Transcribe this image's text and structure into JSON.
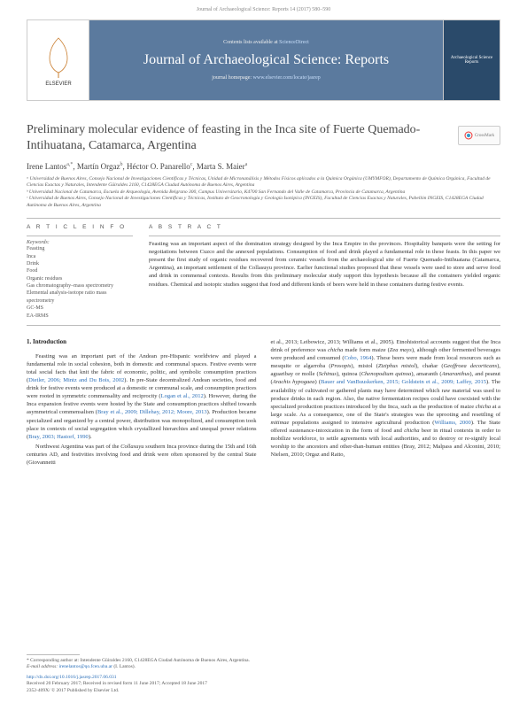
{
  "citation_header": "Journal of Archaeological Science: Reports 14 (2017) 580–590",
  "header": {
    "contents_prefix": "Contents lists available at ",
    "contents_link": "ScienceDirect",
    "journal_name": "Journal of Archaeological Science: Reports",
    "homepage_prefix": "journal homepage: ",
    "homepage_link": "www.elsevier.com/locate/jasrep",
    "publisher_logo_label": "ELSEVIER",
    "cover_label": "Archaeological Science Reports"
  },
  "article": {
    "title": "Preliminary molecular evidence of feasting in the Inca site of Fuerte Quemado-Intihuatana, Catamarca, Argentina",
    "crossmark": "CrossMark",
    "authors_html": "Irene Lantos<sup>a,*</sup>, Martín Orgaz<sup>b</sup>, Héctor O. Panarello<sup>c</sup>, Marta S. Maier<sup>a</sup>",
    "affiliations": [
      "ᵃ Universidad de Buenos Aires, Consejo Nacional de Investigaciones Científicas y Técnicas, Unidad de Micronanálisis y Métodos Físicos aplicados a la Química Orgánica (UMYMFOR), Departamento de Química Orgánica, Facultad de Ciencias Exactas y Naturales, Intendente Güiraldes 2160, C1428EGA Ciudad Autónoma de Buenos Aires, Argentina",
      "ᵇ Universidad Nacional de Catamarca, Escuela de Arqueología, Avenida Belgrano 300, Campus Universitario, K4700 San Fernando del Valle de Catamarca, Provincia de Catamarca, Argentina",
      "ᶜ Universidad de Buenos Aires, Consejo Nacional de Investigaciones Científicas y Técnicas, Instituto de Geocronología y Geología Isotópica (INGEIS), Facultad de Ciencias Exactas y Naturales, Pabellón INGEIS, C1428EGA Ciudad Autónoma de Buenos Aires, Argentina"
    ]
  },
  "info": {
    "heading": "A R T I C L E  I N F O",
    "keywords_label": "Keywords:",
    "keywords": [
      "Feasting",
      "Inca",
      "Drink",
      "Food",
      "Organic residues",
      "Gas chromatography–mass spectrometry",
      "Elemental analysis-isotope ratio mass spectrometry",
      "GC-MS",
      "EA-IRMS"
    ]
  },
  "abstract": {
    "heading": "A B S T R A C T",
    "text": "Feasting was an important aspect of the domination strategy designed by the Inca Empire in the provinces. Hospitality banquets were the setting for negotiations between Cuzco and the annexed populations. Consumption of food and drink played a fundamental role in these feasts. In this paper we present the first study of organic residues recovered from ceramic vessels from the archaeological site of Fuerte Quemado-Intihuatana (Catamarca, Argentina), an important settlement of the Collasuyu province. Earlier functional studies proposed that these vessels were used to store and serve food and drink in commensal contexts. Results from this preliminary molecular study support this hypothesis because all the containers yielded organic residues. Chemical and isotopic studies suggest that food and different kinds of beers were held in these containers during festive events."
  },
  "body": {
    "section1_heading": "1. Introduction",
    "para1": "Feasting was an important part of the Andean pre-Hispanic worldview and played a fundamental role in social cohesion, both in domestic and communal spaces. Festive events were total social facts that knit the fabric of economic, politic, and symbolic consumption practices (Dietler, 2006; Mintz and Du Bois, 2002). In pre-State decentralized Andean societies, food and drink for festive events were produced at a domestic or communal scale, and consumption practices were rooted in symmetric commensality and reciprocity (Logan et al., 2012). However, during the Inca expansion festive events were hosted by the State and consumption practices shifted towards asymmetrical commensalism (Bray et al., 2009; Dillehay, 2012; Moore, 2013). Production became specialized and organized by a central power, distribution was monopolized, and consumption took place in contexts of social segregation which crystallized hierarchies and unequal power relations (Bray, 2003; Hastorf, 1990).",
    "para2": "Northwest Argentina was part of the Collasuyu southern Inca province during the 15th and 16th centuries AD, and festivities involving food and drink were often sponsored by the central State (Giovannetti",
    "para3": "et al., 2013; Leibowicz, 2013; Williams et al., 2005). Etnohistorical accounts suggest that the Inca drink of preference was chicha made form maize (Zea mays), although other fermented beverages were produced and consumed (Cobo, 1964). These beers were made from local resources such as mesquite or algarroba (Prosopis), mistol (Ziziphus mistol), chañar (Geoffroea decorticans), aguaribay or molle (Schinus), quinoa (Chenopodium quinoa), amaranth (Amaranthus), and peanut (Arachis hypogaea) (Bauer and VanBuuskerken, 2015; Goldstein et al., 2009; Laffey, 2015). The availability of cultivated or gathered plants may have determined which raw material was used to produce drinks in each region. Also, the native fermentation recipes could have coexisted with the specialized production practices introduced by the Inca, such as the production of maize chicha at a large scale. As a consequence, one of the State's strategies was the uprooting and resettling of mitimae populations assigned to intensive agricultural production (Williams, 2000). The State offered sustenance-intoxication in the form of food and chicha beer in ritual contexts in order to mobilize workforce, to settle agreements with local authorities, and to destroy or re-signify local worship to the ancestors and other-than-human entities (Bray, 2012; Malpass and Alconini, 2010; Nielsen, 2010; Orgaz and Ratto,"
  },
  "footer": {
    "corresponding": "* Corresponding author at: Intendente Güiraldes 2160, C1428EGA Ciudad Autónoma de Buenos Aires, Argentina.",
    "email_label": "E-mail address: ",
    "email": "irenelantos@qo.fcen.uba.ar",
    "email_tail": " (I. Lantos).",
    "doi": "http://dx.doi.org/10.1016/j.jasrep.2017.06.031",
    "received": "Received 20 February 2017; Received in revised form 11 June 2017; Accepted 18 June 2017",
    "issn": "2352-409X/ © 2017 Published by Elsevier Ltd."
  },
  "colors": {
    "band_bg": "#5b7a9e",
    "link": "#2a6eb8",
    "text": "#333333",
    "muted": "#555555"
  }
}
